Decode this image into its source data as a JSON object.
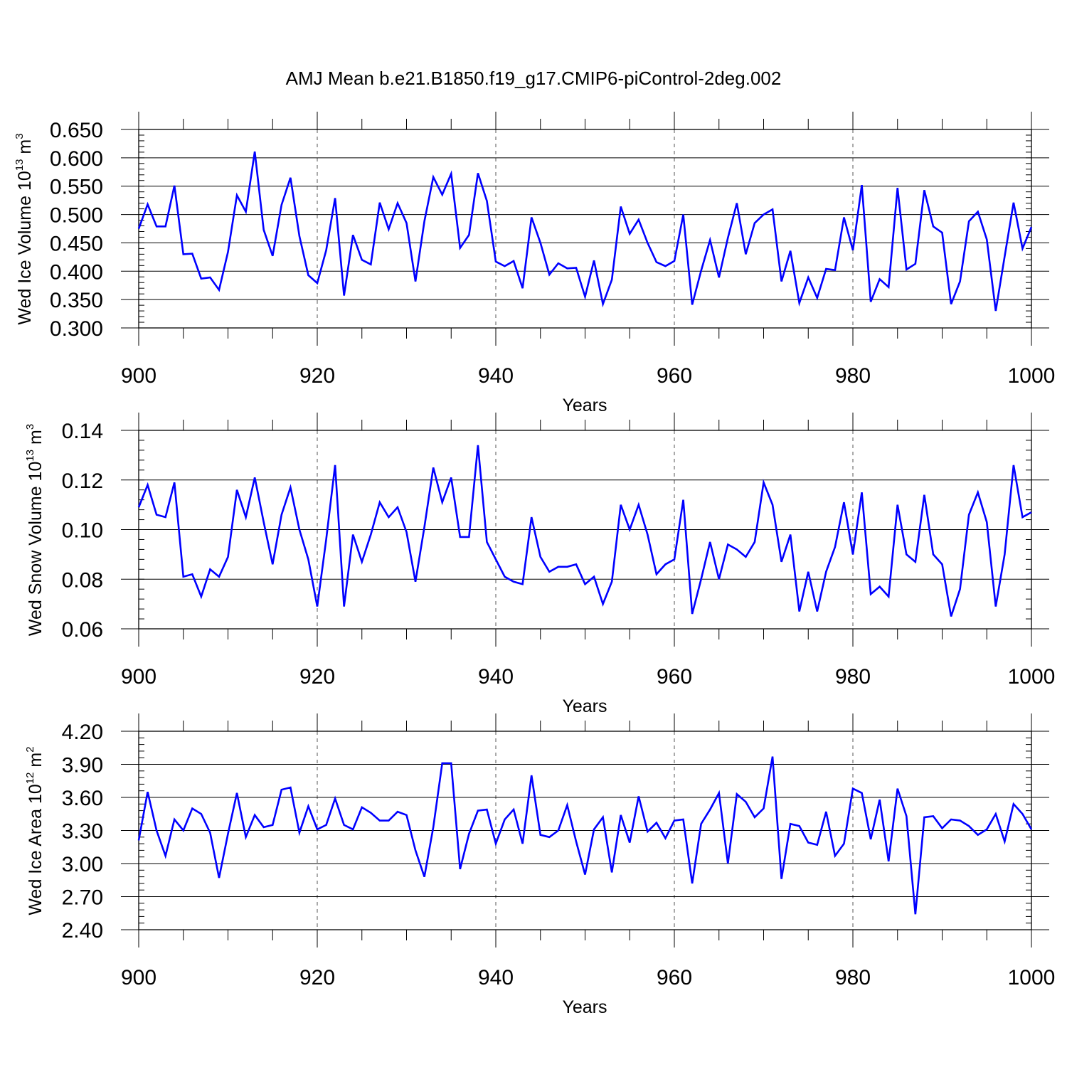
{
  "title": "AMJ Mean b.e21.B1850.f19_g17.CMIP6-piControl-2deg.002",
  "colors": {
    "series": "#0000ff",
    "axes": "#000000",
    "grid": "#555555"
  },
  "chart_data": [
    {
      "type": "line",
      "xlabel": "Years",
      "ylabel": "Wed Ice Volume 10",
      "ylabel_exponent": "13",
      "ylabel_unit": " m",
      "ylabel_unit_exponent": "3",
      "xlim": [
        900,
        1000
      ],
      "ylim": [
        0.3,
        0.65
      ],
      "x_ticks": [
        "900",
        "920",
        "940",
        "960",
        "980",
        "1000"
      ],
      "y_ticks": [
        "0.300",
        "0.350",
        "0.400",
        "0.450",
        "0.500",
        "0.550",
        "0.600",
        "0.650"
      ],
      "vertical_grid_x": [
        920,
        940,
        960,
        980
      ],
      "x_start": 900,
      "values": [
        0.475,
        0.518,
        0.479,
        0.479,
        0.551,
        0.43,
        0.431,
        0.387,
        0.389,
        0.367,
        0.434,
        0.534,
        0.505,
        0.611,
        0.473,
        0.427,
        0.517,
        0.565,
        0.462,
        0.393,
        0.379,
        0.437,
        0.529,
        0.357,
        0.464,
        0.42,
        0.412,
        0.521,
        0.474,
        0.52,
        0.485,
        0.382,
        0.488,
        0.566,
        0.535,
        0.572,
        0.441,
        0.464,
        0.573,
        0.524,
        0.417,
        0.409,
        0.418,
        0.37,
        0.495,
        0.45,
        0.394,
        0.414,
        0.405,
        0.406,
        0.355,
        0.419,
        0.342,
        0.385,
        0.514,
        0.466,
        0.491,
        0.45,
        0.416,
        0.409,
        0.418,
        0.5,
        0.341,
        0.401,
        0.455,
        0.389,
        0.459,
        0.52,
        0.43,
        0.485,
        0.5,
        0.509,
        0.382,
        0.436,
        0.344,
        0.389,
        0.353,
        0.404,
        0.402,
        0.495,
        0.437,
        0.552,
        0.346,
        0.386,
        0.372,
        0.547,
        0.403,
        0.413,
        0.543,
        0.479,
        0.468,
        0.342,
        0.382,
        0.488,
        0.505,
        0.456,
        0.33,
        0.426,
        0.521,
        0.44,
        0.478
      ]
    },
    {
      "type": "line",
      "xlabel": "Years",
      "ylabel": "Wed Snow Volume 10",
      "ylabel_exponent": "13",
      "ylabel_unit": " m",
      "ylabel_unit_exponent": "3",
      "xlim": [
        900,
        1000
      ],
      "ylim": [
        0.06,
        0.14
      ],
      "x_ticks": [
        "900",
        "920",
        "940",
        "960",
        "980",
        "1000"
      ],
      "y_ticks": [
        "0.06",
        "0.08",
        "0.10",
        "0.12",
        "0.14"
      ],
      "vertical_grid_x": [
        920,
        940,
        960,
        980
      ],
      "x_start": 900,
      "values": [
        0.109,
        0.118,
        0.106,
        0.105,
        0.119,
        0.081,
        0.082,
        0.073,
        0.084,
        0.081,
        0.089,
        0.116,
        0.105,
        0.121,
        0.103,
        0.086,
        0.106,
        0.117,
        0.1,
        0.088,
        0.069,
        0.096,
        0.126,
        0.069,
        0.098,
        0.087,
        0.098,
        0.111,
        0.105,
        0.109,
        0.099,
        0.079,
        0.101,
        0.125,
        0.111,
        0.121,
        0.097,
        0.097,
        0.134,
        0.095,
        0.088,
        0.081,
        0.079,
        0.078,
        0.105,
        0.089,
        0.083,
        0.085,
        0.085,
        0.086,
        0.078,
        0.081,
        0.07,
        0.079,
        0.11,
        0.1,
        0.11,
        0.098,
        0.082,
        0.086,
        0.088,
        0.112,
        0.066,
        0.08,
        0.095,
        0.08,
        0.094,
        0.092,
        0.089,
        0.095,
        0.119,
        0.11,
        0.087,
        0.098,
        0.067,
        0.083,
        0.067,
        0.083,
        0.093,
        0.111,
        0.09,
        0.115,
        0.074,
        0.077,
        0.073,
        0.11,
        0.09,
        0.087,
        0.114,
        0.09,
        0.086,
        0.065,
        0.076,
        0.106,
        0.115,
        0.103,
        0.069,
        0.09,
        0.126,
        0.105,
        0.107
      ]
    },
    {
      "type": "line",
      "xlabel": "Years",
      "ylabel": "Wed Ice Area 10",
      "ylabel_exponent": "12",
      "ylabel_unit": " m",
      "ylabel_unit_exponent": "2",
      "xlim": [
        900,
        1000
      ],
      "ylim": [
        2.4,
        4.2
      ],
      "x_ticks": [
        "900",
        "920",
        "940",
        "960",
        "980",
        "1000"
      ],
      "y_ticks": [
        "2.40",
        "2.70",
        "3.00",
        "3.30",
        "3.60",
        "3.90",
        "4.20"
      ],
      "vertical_grid_x": [
        920,
        940,
        960,
        980
      ],
      "x_start": 900,
      "values": [
        3.21,
        3.65,
        3.3,
        3.07,
        3.4,
        3.3,
        3.5,
        3.45,
        3.28,
        2.87,
        3.27,
        3.64,
        3.24,
        3.44,
        3.33,
        3.35,
        3.67,
        3.69,
        3.28,
        3.52,
        3.31,
        3.35,
        3.59,
        3.35,
        3.31,
        3.51,
        3.46,
        3.39,
        3.39,
        3.47,
        3.44,
        3.12,
        2.88,
        3.33,
        3.91,
        3.91,
        2.95,
        3.27,
        3.48,
        3.49,
        3.18,
        3.4,
        3.49,
        3.18,
        3.8,
        3.26,
        3.24,
        3.3,
        3.53,
        3.2,
        2.9,
        3.31,
        3.42,
        2.92,
        3.44,
        3.19,
        3.61,
        3.29,
        3.37,
        3.23,
        3.39,
        3.4,
        2.82,
        3.36,
        3.49,
        3.64,
        3.0,
        3.63,
        3.56,
        3.42,
        3.5,
        3.97,
        2.86,
        3.36,
        3.34,
        3.19,
        3.17,
        3.47,
        3.07,
        3.18,
        3.68,
        3.64,
        3.22,
        3.58,
        3.02,
        3.68,
        3.43,
        2.54,
        3.42,
        3.43,
        3.32,
        3.4,
        3.39,
        3.34,
        3.26,
        3.31,
        3.45,
        3.2,
        3.54,
        3.45,
        3.31
      ]
    }
  ]
}
